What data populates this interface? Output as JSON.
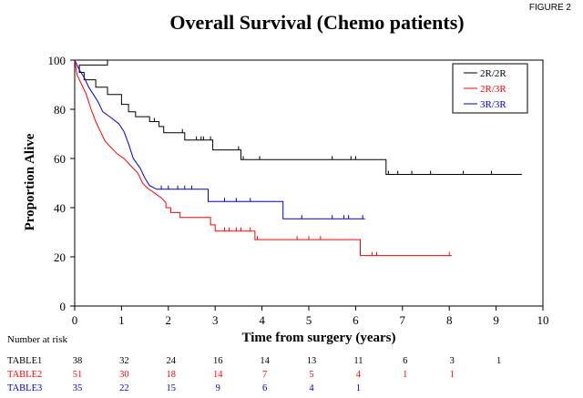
{
  "figure_label": "FIGURE 2",
  "chart_data": {
    "type": "line",
    "step": true,
    "title": "Overall Survival (Chemo patients)",
    "xlabel": "Time from  surgery (years)",
    "ylabel": "Proportion Alive",
    "xlim": [
      0,
      10
    ],
    "ylim": [
      0,
      100
    ],
    "xticks": [
      "0",
      "1",
      "2",
      "3",
      "4",
      "5",
      "6",
      "7",
      "8",
      "9",
      "10"
    ],
    "yticks": [
      "0",
      "20",
      "40",
      "60",
      "80",
      "100"
    ],
    "grid": false,
    "legend_position": "top-right",
    "series": [
      {
        "name": "2R/2R",
        "color": "#000000",
        "points": [
          [
            0,
            100
          ],
          [
            0.7,
            100
          ],
          [
            0.7,
            98
          ],
          [
            0.1,
            98
          ],
          [
            0.1,
            95
          ],
          [
            0.2,
            95
          ],
          [
            0.2,
            92
          ],
          [
            0.45,
            92
          ],
          [
            0.45,
            89
          ],
          [
            0.7,
            89
          ],
          [
            0.7,
            86
          ],
          [
            1.0,
            86
          ],
          [
            1.0,
            82
          ],
          [
            1.15,
            82
          ],
          [
            1.15,
            79
          ],
          [
            1.3,
            79
          ],
          [
            1.3,
            77
          ],
          [
            1.6,
            77
          ],
          [
            1.6,
            75
          ],
          [
            1.8,
            75
          ],
          [
            1.8,
            73
          ],
          [
            1.9,
            73
          ],
          [
            1.9,
            70.5
          ],
          [
            2.35,
            70.5
          ],
          [
            2.35,
            67.5
          ],
          [
            2.95,
            67.5
          ],
          [
            2.95,
            63.5
          ],
          [
            3.55,
            63.5
          ],
          [
            3.55,
            59.5
          ],
          [
            6.65,
            59.5
          ],
          [
            6.65,
            53.5
          ],
          [
            9.55,
            53.5
          ]
        ],
        "censored": [
          [
            1.7,
            75
          ],
          [
            2.3,
            70.5
          ],
          [
            2.6,
            67.5
          ],
          [
            2.7,
            67.5
          ],
          [
            2.75,
            67.5
          ],
          [
            2.9,
            67.5
          ],
          [
            3.5,
            63.5
          ],
          [
            3.6,
            59.5
          ],
          [
            3.95,
            59.5
          ],
          [
            5.5,
            59.5
          ],
          [
            5.9,
            59.5
          ],
          [
            6.0,
            59.5
          ],
          [
            6.7,
            53.5
          ],
          [
            6.9,
            53.5
          ],
          [
            7.2,
            53.5
          ],
          [
            7.6,
            53.5
          ],
          [
            8.3,
            53.5
          ],
          [
            8.9,
            53.5
          ]
        ]
      },
      {
        "name": "2R/3R",
        "color": "#ff0000",
        "points": [
          [
            0,
            100
          ],
          [
            0.05,
            94
          ],
          [
            0.15,
            90
          ],
          [
            0.25,
            86
          ],
          [
            0.35,
            80
          ],
          [
            0.45,
            75
          ],
          [
            0.55,
            71
          ],
          [
            0.65,
            67
          ],
          [
            0.75,
            65
          ],
          [
            0.9,
            62
          ],
          [
            1.05,
            60
          ],
          [
            1.2,
            57
          ],
          [
            1.35,
            54
          ],
          [
            1.45,
            50
          ],
          [
            1.55,
            48
          ],
          [
            1.7,
            46
          ],
          [
            1.85,
            44
          ],
          [
            1.95,
            42
          ],
          [
            1.95,
            40
          ],
          [
            2.05,
            40
          ],
          [
            2.05,
            38
          ],
          [
            2.25,
            38
          ],
          [
            2.25,
            36
          ],
          [
            2.9,
            36
          ],
          [
            2.9,
            33
          ],
          [
            3.0,
            33
          ],
          [
            3.0,
            30.5
          ],
          [
            3.85,
            30.5
          ],
          [
            3.85,
            27
          ],
          [
            6.1,
            27
          ],
          [
            6.1,
            20.5
          ],
          [
            8.05,
            20.5
          ]
        ],
        "censored": [
          [
            3.2,
            30.5
          ],
          [
            3.3,
            30.5
          ],
          [
            3.45,
            30.5
          ],
          [
            3.55,
            30.5
          ],
          [
            3.75,
            30.5
          ],
          [
            3.9,
            27
          ],
          [
            4.75,
            27
          ],
          [
            5.0,
            27
          ],
          [
            5.25,
            27
          ],
          [
            6.35,
            20.5
          ],
          [
            6.45,
            20.5
          ],
          [
            8.0,
            20.5
          ]
        ]
      },
      {
        "name": "3R/3R",
        "color": "#0000cc",
        "points": [
          [
            0,
            100
          ],
          [
            0.1,
            96
          ],
          [
            0.2,
            93
          ],
          [
            0.3,
            89
          ],
          [
            0.4,
            86
          ],
          [
            0.5,
            83
          ],
          [
            0.6,
            79
          ],
          [
            0.75,
            77
          ],
          [
            0.95,
            74
          ],
          [
            1.05,
            71
          ],
          [
            1.15,
            66
          ],
          [
            1.25,
            60
          ],
          [
            1.4,
            56
          ],
          [
            1.5,
            52
          ],
          [
            1.6,
            49
          ],
          [
            1.75,
            47.5
          ],
          [
            2.85,
            47.5
          ],
          [
            2.85,
            42.5
          ],
          [
            4.45,
            42.5
          ],
          [
            4.45,
            35.5
          ],
          [
            6.2,
            35.5
          ]
        ],
        "censored": [
          [
            1.85,
            47.5
          ],
          [
            2.0,
            47.5
          ],
          [
            2.2,
            47.5
          ],
          [
            2.35,
            47.5
          ],
          [
            2.5,
            47.5
          ],
          [
            3.2,
            42.5
          ],
          [
            3.45,
            42.5
          ],
          [
            3.75,
            42.5
          ],
          [
            4.85,
            35.5
          ],
          [
            5.5,
            35.5
          ],
          [
            5.75,
            35.5
          ],
          [
            5.85,
            35.5
          ],
          [
            6.15,
            35.5
          ]
        ]
      }
    ]
  },
  "risk_table": {
    "heading": "Number at risk",
    "rows": [
      {
        "label": "TABLE1",
        "color": "#000000",
        "values": [
          "38",
          "32",
          "24",
          "16",
          "14",
          "13",
          "11",
          "6",
          "3",
          "1"
        ]
      },
      {
        "label": "TABLE2",
        "color": "#ff0000",
        "values": [
          "51",
          "30",
          "18",
          "14",
          "7",
          "5",
          "4",
          "1",
          "1"
        ]
      },
      {
        "label": "TABLE3",
        "color": "#0000cc",
        "values": [
          "35",
          "22",
          "15",
          "9",
          "6",
          "4",
          "1"
        ]
      }
    ]
  }
}
